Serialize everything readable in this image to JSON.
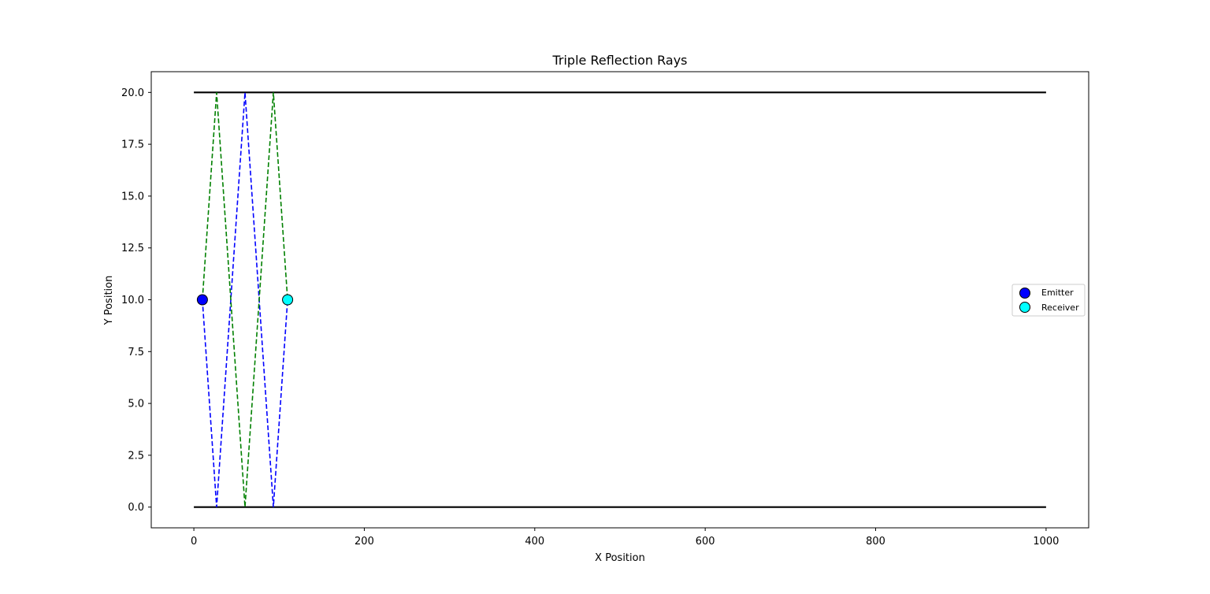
{
  "chart_data": {
    "type": "line",
    "title": "Triple Reflection Rays",
    "xlabel": "X Position",
    "ylabel": "Y Position",
    "xlim": [
      -50,
      1050
    ],
    "ylim": [
      -1,
      21
    ],
    "xticks": [
      0,
      200,
      400,
      600,
      800,
      1000
    ],
    "yticks": [
      0.0,
      2.5,
      5.0,
      7.5,
      10.0,
      12.5,
      15.0,
      17.5,
      20.0
    ],
    "xtick_labels": [
      "0",
      "200",
      "400",
      "600",
      "800",
      "1000"
    ],
    "ytick_labels": [
      "0.0",
      "2.5",
      "5.0",
      "7.5",
      "10.0",
      "12.5",
      "15.0",
      "17.5",
      "20.0"
    ],
    "grid": false,
    "legend": {
      "placement": "right",
      "entries": [
        {
          "label": "Emitter",
          "color": "#0000ff"
        },
        {
          "label": "Receiver",
          "color": "#00ffff"
        }
      ]
    },
    "boundaries": [
      {
        "x": [
          0,
          1000
        ],
        "y": [
          20,
          20
        ],
        "color": "#000000"
      },
      {
        "x": [
          0,
          1000
        ],
        "y": [
          0,
          0
        ],
        "color": "#000000"
      }
    ],
    "rays": [
      {
        "color": "#0000ff",
        "style": "dashed",
        "x": [
          10,
          26.7,
          60,
          93.3,
          110
        ],
        "y": [
          10,
          0,
          20,
          0,
          10
        ]
      },
      {
        "color": "#008000",
        "style": "dashed",
        "x": [
          10,
          26.7,
          60,
          93.3,
          110
        ],
        "y": [
          10,
          20,
          0,
          20,
          10
        ]
      }
    ],
    "points": [
      {
        "label": "Emitter",
        "x": 10,
        "y": 10,
        "color": "#0000ff"
      },
      {
        "label": "Receiver",
        "x": 110,
        "y": 10,
        "color": "#00ffff"
      }
    ]
  }
}
